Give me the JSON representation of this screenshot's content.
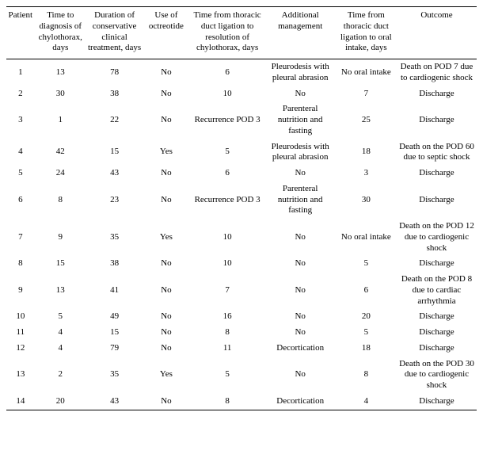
{
  "table": {
    "columns": [
      "Patient",
      "Time to diagnosis of chylothorax, days",
      "Duration of conservative clinical treatment, days",
      "Use of octreotide",
      "Time from thoracic duct ligation to resolution of chylothorax, days",
      "Additional management",
      "Time from thoracic duct ligation to oral intake, days",
      "Outcome"
    ],
    "rows": [
      [
        "1",
        "13",
        "78",
        "No",
        "6",
        "Pleurodesis with pleural abrasion",
        "No oral intake",
        "Death on POD 7 due to cardiogenic shock"
      ],
      [
        "2",
        "30",
        "38",
        "No",
        "10",
        "No",
        "7",
        "Discharge"
      ],
      [
        "3",
        "1",
        "22",
        "No",
        "Recurrence POD 3",
        "Parenteral nutrition and fasting",
        "25",
        "Discharge"
      ],
      [
        "4",
        "42",
        "15",
        "Yes",
        "5",
        "Pleurodesis with pleural abrasion",
        "18",
        "Death on the POD 60 due to septic shock"
      ],
      [
        "5",
        "24",
        "43",
        "No",
        "6",
        "No",
        "3",
        "Discharge"
      ],
      [
        "6",
        "8",
        "23",
        "No",
        "Recurrence POD 3",
        "Parenteral nutrition and fasting",
        "30",
        "Discharge"
      ],
      [
        "7",
        "9",
        "35",
        "Yes",
        "10",
        "No",
        "No oral intake",
        "Death on the POD 12 due to cardiogenic shock"
      ],
      [
        "8",
        "15",
        "38",
        "No",
        "10",
        "No",
        "5",
        "Discharge"
      ],
      [
        "9",
        "13",
        "41",
        "No",
        "7",
        "No",
        "6",
        "Death on the POD 8 due to cardiac arrhythmia"
      ],
      [
        "10",
        "5",
        "49",
        "No",
        "16",
        "No",
        "20",
        "Discharge"
      ],
      [
        "11",
        "4",
        "15",
        "No",
        "8",
        "No",
        "5",
        "Discharge"
      ],
      [
        "12",
        "4",
        "79",
        "No",
        "11",
        "Decortication",
        "18",
        "Discharge"
      ],
      [
        "13",
        "2",
        "35",
        "Yes",
        "5",
        "No",
        "8",
        "Death on the POD 30 due to cardiogenic shock"
      ],
      [
        "14",
        "20",
        "43",
        "No",
        "8",
        "Decortication",
        "4",
        "Discharge"
      ]
    ],
    "styling": {
      "font_family": "Times New Roman",
      "header_fontsize": 11,
      "body_fontsize": 11,
      "background_color": "#ffffff",
      "text_color": "#000000",
      "border_color": "#000000",
      "col_widths_pct": [
        6,
        11,
        12,
        10,
        16,
        15,
        13,
        17
      ],
      "border_top": true,
      "border_bottom_header": true,
      "border_bottom_last_row": true
    }
  }
}
